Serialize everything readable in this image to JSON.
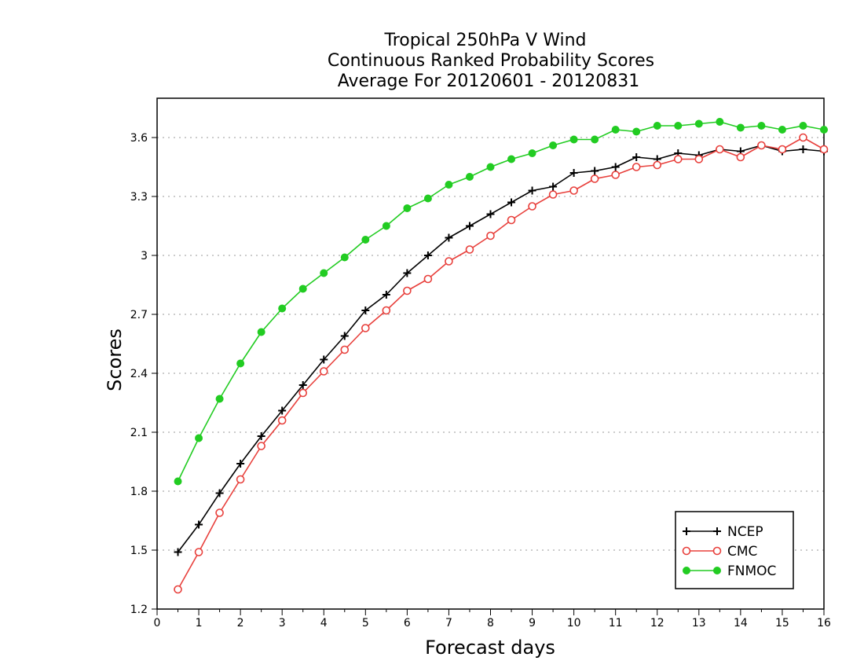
{
  "chart_data": {
    "type": "line",
    "title_lines": [
      "Tropical 250hPa V Wind",
      "Continuous Ranked Probability Scores",
      "Average For 20120601 - 20120831"
    ],
    "xlabel": "Forecast days",
    "ylabel": "Scores",
    "xlim": [
      0,
      16
    ],
    "ylim": [
      1.2,
      3.8
    ],
    "x_ticks": [
      0,
      1,
      2,
      3,
      4,
      5,
      6,
      7,
      8,
      9,
      10,
      11,
      12,
      13,
      14,
      15,
      16
    ],
    "x_tick_labels": [
      "0",
      "1",
      "2",
      "3",
      "4",
      "5",
      "6",
      "7",
      "8",
      "9",
      "10",
      "11",
      "12",
      "13",
      "14",
      "15",
      "16"
    ],
    "y_ticks": [
      1.2,
      1.5,
      1.8,
      2.1,
      2.4,
      2.7,
      3,
      3.3,
      3.6
    ],
    "y_tick_labels": [
      "1.2",
      "1.5",
      "1.8",
      "2.1",
      "2.4",
      "2.7",
      "3",
      "3.3",
      "3.6"
    ],
    "grid": "horizontal dotted",
    "legend_position": "bottom-right",
    "x": [
      0.5,
      1,
      1.5,
      2,
      2.5,
      3,
      3.5,
      4,
      4.5,
      5,
      5.5,
      6,
      6.5,
      7,
      7.5,
      8,
      8.5,
      9,
      9.5,
      10,
      10.5,
      11,
      11.5,
      12,
      12.5,
      13,
      13.5,
      14,
      14.5,
      15,
      15.5,
      16
    ],
    "series": [
      {
        "name": "NCEP",
        "color": "#000000",
        "marker": "plus",
        "values": [
          1.49,
          1.63,
          1.79,
          1.94,
          2.08,
          2.21,
          2.34,
          2.47,
          2.59,
          2.72,
          2.8,
          2.91,
          3.0,
          3.09,
          3.15,
          3.21,
          3.27,
          3.33,
          3.35,
          3.42,
          3.43,
          3.45,
          3.5,
          3.49,
          3.52,
          3.51,
          3.54,
          3.53,
          3.56,
          3.53,
          3.54,
          3.53
        ]
      },
      {
        "name": "CMC",
        "color": "#e8403c",
        "marker": "open-circle",
        "values": [
          1.3,
          1.49,
          1.69,
          1.86,
          2.03,
          2.16,
          2.3,
          2.41,
          2.52,
          2.63,
          2.72,
          2.82,
          2.88,
          2.97,
          3.03,
          3.1,
          3.18,
          3.25,
          3.31,
          3.33,
          3.39,
          3.41,
          3.45,
          3.46,
          3.49,
          3.49,
          3.54,
          3.5,
          3.56,
          3.54,
          3.6,
          3.54
        ]
      },
      {
        "name": "FNMOC",
        "color": "#22cc22",
        "marker": "filled-circle",
        "values": [
          1.85,
          2.07,
          2.27,
          2.45,
          2.61,
          2.73,
          2.83,
          2.91,
          2.99,
          3.08,
          3.15,
          3.24,
          3.29,
          3.36,
          3.4,
          3.45,
          3.49,
          3.52,
          3.56,
          3.59,
          3.59,
          3.64,
          3.63,
          3.66,
          3.66,
          3.67,
          3.68,
          3.65,
          3.66,
          3.64,
          3.66,
          3.64
        ]
      }
    ]
  }
}
